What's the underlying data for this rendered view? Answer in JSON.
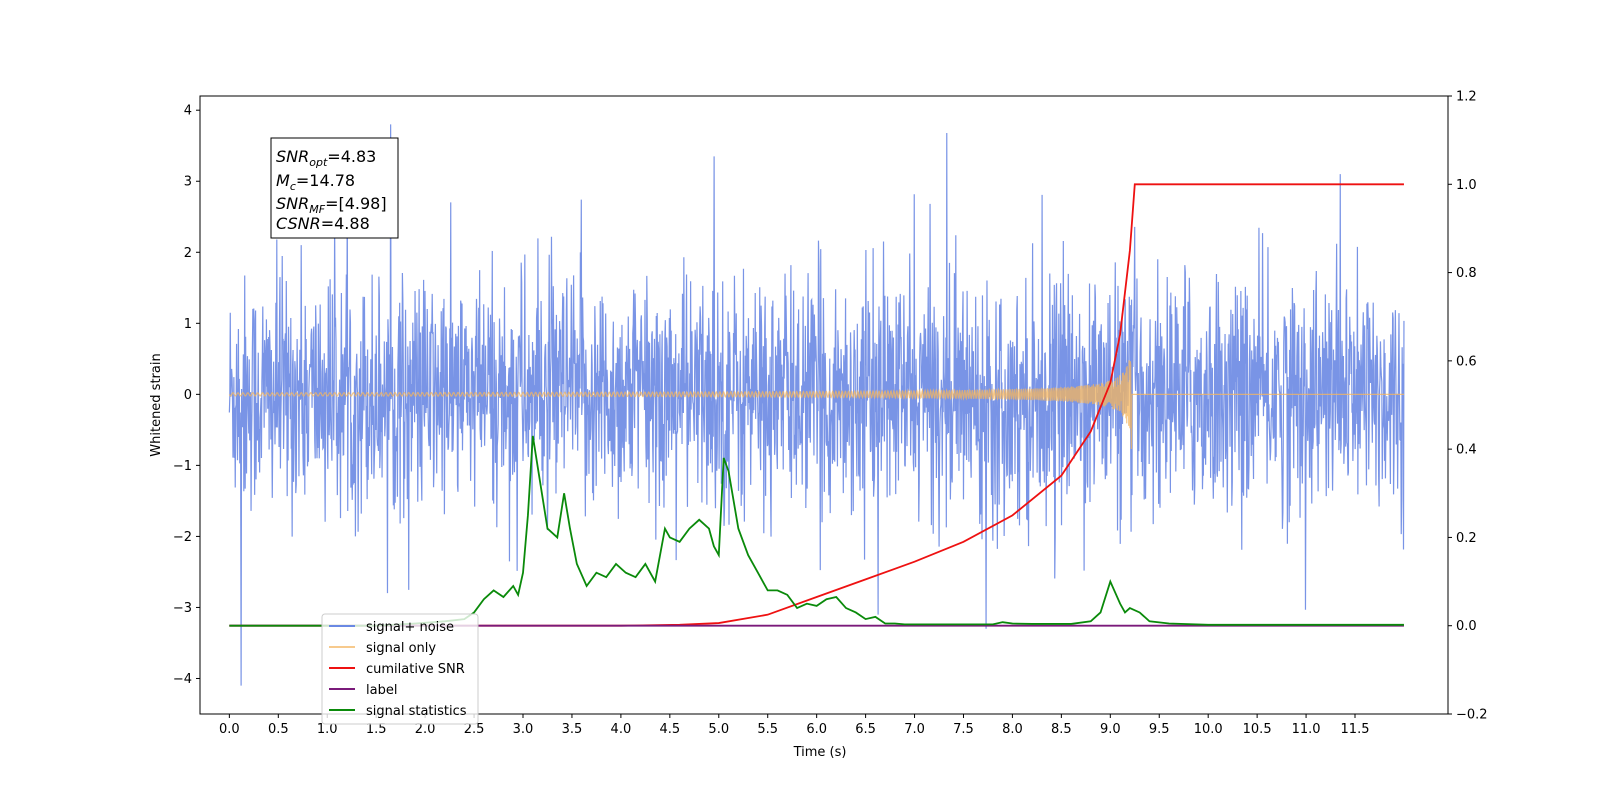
{
  "chart_data": {
    "type": "line",
    "xlabel": "Time (s)",
    "ylabel": "Whitened strain",
    "xlim": [
      -0.3,
      12.45
    ],
    "ylim_left": [
      -4.5,
      4.2
    ],
    "ylim_right": [
      -0.2,
      1.2
    ],
    "x_ticks": [
      "0.0",
      "0.5",
      "1.0",
      "1.5",
      "2.0",
      "2.5",
      "3.0",
      "3.5",
      "4.0",
      "4.5",
      "5.0",
      "5.5",
      "6.0",
      "6.5",
      "7.0",
      "7.5",
      "8.0",
      "8.5",
      "9.0",
      "9.5",
      "10.0",
      "10.5",
      "11.0",
      "11.5"
    ],
    "y_left_ticks": [
      "4",
      "3",
      "2",
      "1",
      "0",
      "−1",
      "−2",
      "−3",
      "−4"
    ],
    "y_right_ticks": [
      "1.2",
      "1.0",
      "0.8",
      "0.6",
      "0.4",
      "0.2",
      "0.0",
      "−0.2"
    ],
    "annotation": {
      "snr_opt": {
        "label": "SNR",
        "sub": "opt",
        "value": "=4.83"
      },
      "mc": {
        "label": "M",
        "sub": "c",
        "value": "=14.78"
      },
      "snr_mf": {
        "label": "SNR",
        "sub": "MF",
        "value": "=[4.98]"
      },
      "csnr": {
        "label": "CSNR",
        "value": "=4.88"
      }
    },
    "legend_position": "lower-left",
    "series": [
      {
        "name": "signal+ noise",
        "axis": "left",
        "color": "#6a88e3",
        "description_values": {
          "x_range": [
            0,
            12
          ],
          "amplitude_typical": 1.5,
          "peaks": [
            [
              0.12,
              -4.1
            ],
            [
              1.65,
              3.8
            ],
            [
              7.33,
              3.68
            ],
            [
              4.95,
              3.35
            ],
            [
              11.35,
              3.1
            ]
          ]
        }
      },
      {
        "name": "signal only",
        "axis": "left",
        "color": "#f5b55e",
        "chirp": {
          "start": 0,
          "merger": 9.22,
          "amplitude_max": 0.88,
          "amplitude_min": -0.85
        }
      },
      {
        "name": "cumilative SNR",
        "axis": "right",
        "color": "#ee1111",
        "x": [
          0,
          4.0,
          4.6,
          5.0,
          5.5,
          6.0,
          6.5,
          7.0,
          7.5,
          8.0,
          8.5,
          8.8,
          9.0,
          9.1,
          9.2,
          9.25,
          12.0
        ],
        "y": [
          0,
          0,
          0.002,
          0.006,
          0.025,
          0.065,
          0.105,
          0.145,
          0.19,
          0.25,
          0.34,
          0.44,
          0.55,
          0.66,
          0.85,
          1.0,
          1.0
        ]
      },
      {
        "name": "label",
        "axis": "right",
        "color": "#7a1a7a",
        "x": [
          0,
          12
        ],
        "y": [
          0,
          0
        ]
      },
      {
        "name": "signal statistics",
        "axis": "right",
        "color": "#0a8a0a",
        "x": [
          0,
          1.5,
          1.9,
          2.2,
          2.4,
          2.5,
          2.6,
          2.7,
          2.8,
          2.9,
          2.95,
          3.0,
          3.05,
          3.1,
          3.15,
          3.25,
          3.35,
          3.42,
          3.48,
          3.55,
          3.65,
          3.75,
          3.85,
          3.95,
          4.05,
          4.15,
          4.25,
          4.35,
          4.45,
          4.5,
          4.6,
          4.7,
          4.8,
          4.9,
          4.95,
          5.0,
          5.05,
          5.1,
          5.2,
          5.3,
          5.4,
          5.5,
          5.6,
          5.7,
          5.8,
          5.9,
          6.0,
          6.1,
          6.2,
          6.3,
          6.4,
          6.5,
          6.6,
          6.7,
          6.8,
          6.9,
          7.2,
          7.8,
          7.9,
          8.0,
          8.2,
          8.6,
          8.8,
          8.9,
          9.0,
          9.1,
          9.15,
          9.2,
          9.3,
          9.4,
          9.6,
          10.0,
          12.0
        ],
        "y": [
          0,
          0,
          0.005,
          0.01,
          0.015,
          0.03,
          0.06,
          0.08,
          0.065,
          0.09,
          0.07,
          0.12,
          0.25,
          0.43,
          0.36,
          0.22,
          0.2,
          0.3,
          0.22,
          0.14,
          0.09,
          0.12,
          0.11,
          0.14,
          0.12,
          0.11,
          0.14,
          0.1,
          0.22,
          0.2,
          0.19,
          0.22,
          0.24,
          0.22,
          0.18,
          0.16,
          0.38,
          0.35,
          0.22,
          0.16,
          0.12,
          0.08,
          0.08,
          0.07,
          0.04,
          0.05,
          0.045,
          0.06,
          0.065,
          0.04,
          0.03,
          0.015,
          0.02,
          0.005,
          0.005,
          0.003,
          0.003,
          0.003,
          0.008,
          0.005,
          0.004,
          0.004,
          0.01,
          0.03,
          0.1,
          0.05,
          0.03,
          0.04,
          0.03,
          0.01,
          0.005,
          0.002,
          0.002
        ]
      }
    ]
  }
}
